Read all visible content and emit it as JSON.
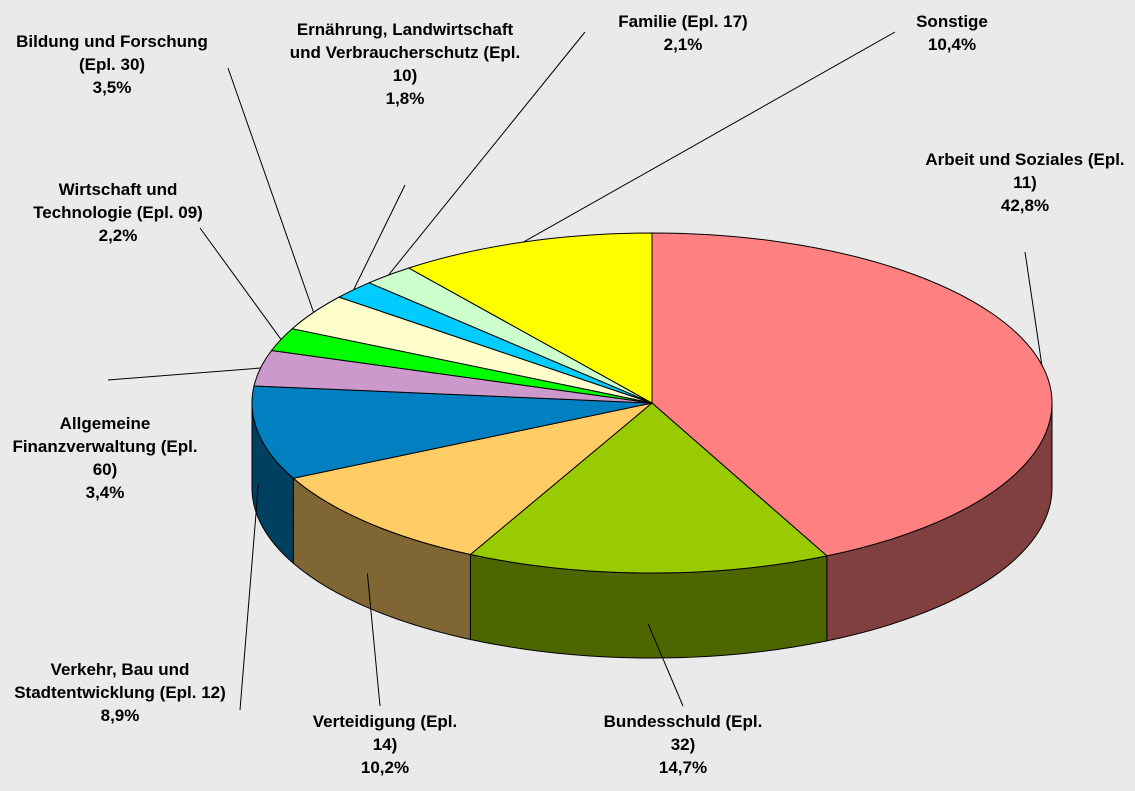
{
  "chart_data": {
    "type": "pie",
    "categories": [
      "Arbeit und Soziales (Epl. 11)",
      "Bundesschuld (Epl. 32)",
      "Verteidigung (Epl. 14)",
      "Verkehr, Bau und Stadtentwicklung (Epl. 12)",
      "Allgemeine Finanzverwaltung (Epl. 60)",
      "Wirtschaft und Technologie (Epl. 09)",
      "Bildung und Forschung (Epl. 30)",
      "Ernährung, Landwirtschaft und Verbraucherschutz (Epl. 10)",
      "Familie (Epl. 17)",
      "Sonstige"
    ],
    "values": [
      42.8,
      14.7,
      10.2,
      8.9,
      3.4,
      2.2,
      3.5,
      1.8,
      2.1,
      10.4
    ],
    "value_labels": [
      "42,8%",
      "14,7%",
      "10,2%",
      "8,9%",
      "3,4%",
      "2,2%",
      "3,5%",
      "1,8%",
      "2,1%",
      "10,4%"
    ],
    "colors": [
      "#FF8080",
      "#99CC00",
      "#FFCC66",
      "#0080C0",
      "#CC99CC",
      "#00FF00",
      "#FFFFCC",
      "#00CCFF",
      "#CCFFCC",
      "#FFFF00"
    ]
  }
}
